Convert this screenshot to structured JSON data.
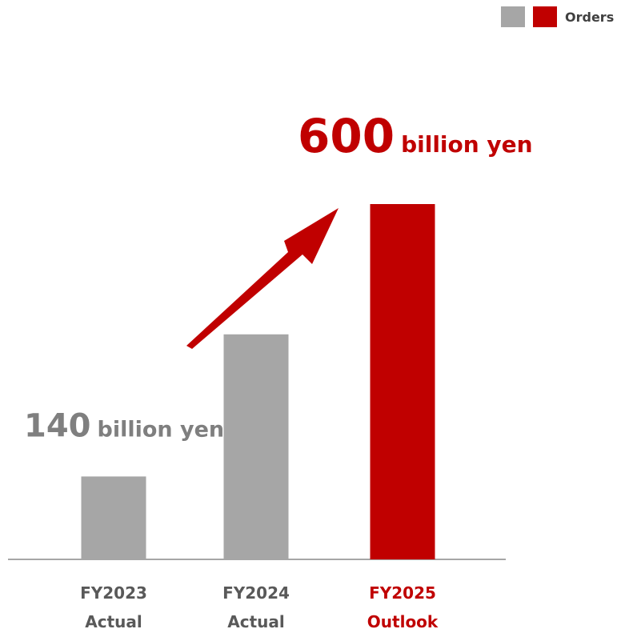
{
  "chart_data": {
    "type": "bar",
    "categories": [
      "FY2023",
      "FY2024",
      "FY2025"
    ],
    "category_sublabels": [
      "Actual",
      "Actual",
      "Outlook"
    ],
    "category_colors": [
      "#595959",
      "#595959",
      "#c00000"
    ],
    "values": [
      140,
      380,
      600
    ],
    "value_labels": [
      "140",
      null,
      "600"
    ],
    "value_unit": "billion yen",
    "value_label_colors": [
      "#7f7f7f",
      null,
      "#c00000"
    ],
    "colors": [
      "#a6a6a6",
      "#a6a6a6",
      "#c00000"
    ],
    "ylim": [
      0,
      600
    ],
    "legend": {
      "label": "Orders",
      "colors": [
        "#a6a6a6",
        "#c00000"
      ],
      "position": "upper right"
    }
  }
}
